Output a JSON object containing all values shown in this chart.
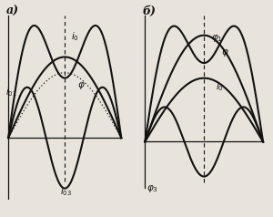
{
  "background": "#e8e4dc",
  "line_color": "#111111",
  "left_label": "а)",
  "right_label": "б)",
  "label_fontsize": 9,
  "annotation_fontsize": 7.5,
  "lw": 1.5
}
